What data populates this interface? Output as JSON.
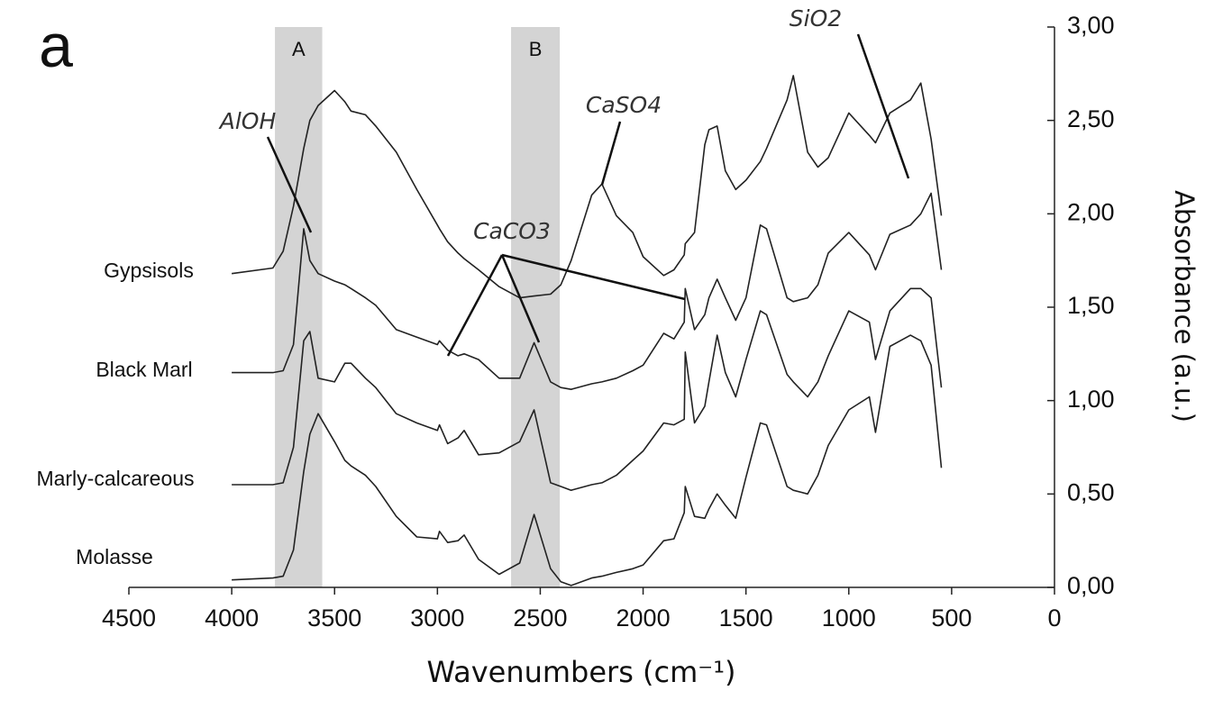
{
  "chart_data": {
    "type": "line",
    "panel_label": "a",
    "xlabel": "Wavenumbers (cm⁻¹)",
    "ylabel": "Absorbance (a.u.)",
    "xlim": [
      4500,
      0
    ],
    "xticks": [
      4500,
      4000,
      3500,
      3000,
      2500,
      2000,
      1500,
      1000,
      500,
      0
    ],
    "ylim": [
      0,
      3
    ],
    "yticks": [
      {
        "value": 0,
        "label": "0,00"
      },
      {
        "value": 0.5,
        "label": "0,50"
      },
      {
        "value": 1,
        "label": "1,00"
      },
      {
        "value": 1.5,
        "label": "1,50"
      },
      {
        "value": 2,
        "label": "2,00"
      },
      {
        "value": 2.5,
        "label": "2,50"
      },
      {
        "value": 3,
        "label": "3,00"
      }
    ],
    "bands": [
      {
        "label": "A",
        "from": 3790,
        "to": 3560
      },
      {
        "label": "B",
        "from": 2642,
        "to": 2405
      }
    ],
    "band_color": "#d4d4d4",
    "annotations": [
      "AlOH",
      "CaCO3",
      "CaSO4",
      "SiO2"
    ],
    "x": [
      4000,
      3800,
      3750,
      3700,
      3650,
      3620,
      3580,
      3500,
      3450,
      3420,
      3350,
      3300,
      3200,
      3100,
      3000,
      2990,
      2950,
      2900,
      2870,
      2800,
      2700,
      2600,
      2530,
      2450,
      2400,
      2350,
      2250,
      2200,
      2130,
      2050,
      2000,
      1900,
      1850,
      1800,
      1795,
      1750,
      1700,
      1680,
      1640,
      1600,
      1550,
      1500,
      1430,
      1400,
      1300,
      1270,
      1200,
      1150,
      1100,
      1000,
      900,
      870,
      800,
      700,
      650,
      600,
      550
    ],
    "series": [
      {
        "name": "Gypsisols",
        "color": "#222222",
        "values": [
          1.68,
          1.71,
          1.8,
          2.04,
          2.35,
          2.5,
          2.58,
          2.66,
          2.6,
          2.55,
          2.53,
          2.47,
          2.33,
          2.13,
          1.94,
          1.92,
          1.85,
          1.79,
          1.76,
          1.7,
          1.61,
          1.55,
          1.56,
          1.57,
          1.62,
          1.75,
          2.1,
          2.16,
          1.99,
          1.9,
          1.77,
          1.67,
          1.7,
          1.78,
          1.84,
          1.9,
          2.37,
          2.45,
          2.47,
          2.23,
          2.13,
          2.18,
          2.28,
          2.35,
          2.61,
          2.74,
          2.33,
          2.25,
          2.3,
          2.54,
          2.42,
          2.38,
          2.54,
          2.61,
          2.7,
          2.4,
          1.99
        ]
      },
      {
        "name": "Black Marl",
        "color": "#222222",
        "values": [
          1.15,
          1.15,
          1.16,
          1.3,
          1.92,
          1.75,
          1.68,
          1.64,
          1.62,
          1.6,
          1.55,
          1.51,
          1.38,
          1.34,
          1.3,
          1.32,
          1.27,
          1.24,
          1.25,
          1.22,
          1.12,
          1.12,
          1.31,
          1.1,
          1.07,
          1.06,
          1.09,
          1.1,
          1.12,
          1.16,
          1.19,
          1.36,
          1.33,
          1.42,
          1.6,
          1.38,
          1.46,
          1.55,
          1.65,
          1.55,
          1.43,
          1.55,
          1.94,
          1.92,
          1.55,
          1.53,
          1.55,
          1.62,
          1.79,
          1.9,
          1.78,
          1.7,
          1.89,
          1.94,
          2.0,
          2.11,
          1.7
        ]
      },
      {
        "name": "Marly-calcareous",
        "color": "#222222",
        "values": [
          0.55,
          0.55,
          0.56,
          0.75,
          1.32,
          1.37,
          1.12,
          1.1,
          1.2,
          1.2,
          1.12,
          1.07,
          0.93,
          0.88,
          0.84,
          0.87,
          0.77,
          0.8,
          0.84,
          0.71,
          0.72,
          0.78,
          0.95,
          0.56,
          0.54,
          0.52,
          0.55,
          0.56,
          0.6,
          0.68,
          0.73,
          0.88,
          0.87,
          0.9,
          1.26,
          0.88,
          0.97,
          1.1,
          1.35,
          1.15,
          1.02,
          1.22,
          1.48,
          1.46,
          1.14,
          1.1,
          1.02,
          1.1,
          1.24,
          1.48,
          1.42,
          1.22,
          1.48,
          1.6,
          1.6,
          1.55,
          1.07
        ]
      },
      {
        "name": "Molasse",
        "color": "#222222",
        "values": [
          0.04,
          0.05,
          0.06,
          0.2,
          0.62,
          0.82,
          0.93,
          0.78,
          0.68,
          0.65,
          0.6,
          0.54,
          0.38,
          0.27,
          0.26,
          0.3,
          0.24,
          0.25,
          0.28,
          0.15,
          0.07,
          0.13,
          0.39,
          0.1,
          0.03,
          0.01,
          0.05,
          0.06,
          0.08,
          0.1,
          0.12,
          0.25,
          0.26,
          0.4,
          0.54,
          0.38,
          0.37,
          0.42,
          0.5,
          0.44,
          0.37,
          0.59,
          0.88,
          0.87,
          0.54,
          0.52,
          0.5,
          0.6,
          0.76,
          0.95,
          1.02,
          0.83,
          1.29,
          1.35,
          1.32,
          1.19,
          0.64
        ]
      }
    ]
  }
}
